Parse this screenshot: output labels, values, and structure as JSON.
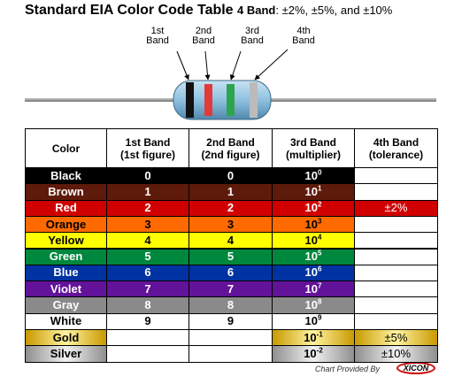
{
  "header": {
    "title": "Standard EIA Color Code Table",
    "band_count": "4 Band",
    "tolerances": ": ±2%, ±5%, and ±10%"
  },
  "band_labels": [
    {
      "line1": "1st",
      "line2": "Band"
    },
    {
      "line1": "2nd",
      "line2": "Band"
    },
    {
      "line1": "3rd",
      "line2": "Band"
    },
    {
      "line1": "4th",
      "line2": "Band"
    }
  ],
  "table": {
    "columns": [
      {
        "line1": "Color"
      },
      {
        "line1": "1st Band",
        "line2": "(1st figure)"
      },
      {
        "line1": "2nd Band",
        "line2": "(2nd figure)"
      },
      {
        "line1": "3rd Band",
        "line2": "(multiplier)"
      },
      {
        "line1": "4th Band",
        "line2": "(tolerance)"
      }
    ],
    "rows": [
      {
        "color": "Black",
        "first": "0",
        "second": "0",
        "base": "10",
        "exp": "0"
      },
      {
        "color": "Brown",
        "first": "1",
        "second": "1",
        "base": "10",
        "exp": "1"
      },
      {
        "color": "Red",
        "first": "2",
        "second": "2",
        "base": "10",
        "exp": "2",
        "tolerance": "±2%"
      },
      {
        "color": "Orange",
        "first": "3",
        "second": "3",
        "base": "10",
        "exp": "3"
      },
      {
        "color": "Yellow",
        "first": "4",
        "second": "4",
        "base": "10",
        "exp": "4"
      },
      {
        "color": "Green",
        "first": "5",
        "second": "5",
        "base": "10",
        "exp": "5"
      },
      {
        "color": "Blue",
        "first": "6",
        "second": "6",
        "base": "10",
        "exp": "6"
      },
      {
        "color": "Violet",
        "first": "7",
        "second": "7",
        "base": "10",
        "exp": "7"
      },
      {
        "color": "Gray",
        "first": "8",
        "second": "8",
        "base": "10",
        "exp": "8"
      },
      {
        "color": "White",
        "first": "9",
        "second": "9",
        "base": "10",
        "exp": "9"
      },
      {
        "color": "Gold",
        "base": "10",
        "exp": "-1",
        "tolerance": "±5%"
      },
      {
        "color": "Silver",
        "base": "10",
        "exp": "-2",
        "tolerance": "±10%"
      }
    ]
  },
  "footer": {
    "credit": "Chart Provided By",
    "logo": "XICON"
  }
}
